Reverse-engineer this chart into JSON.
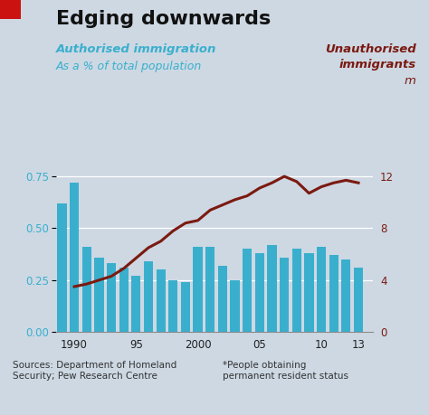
{
  "title": "Edging downwards",
  "left_label_line1": "Authorised immigration",
  "left_label_line2": "As a % of total population",
  "right_label_line1": "Unauthorised",
  "right_label_line2": "immigrants",
  "right_label_line3": "m",
  "background_color": "#cdd8e3",
  "bar_color": "#3aafcd",
  "line_color": "#7b1a10",
  "left_axis_color": "#3aafcd",
  "right_axis_color": "#7b1a10",
  "source_text": "Sources: Department of Homeland\nSecurity; Pew Research Centre",
  "note_text": "*People obtaining\npermanent resident status",
  "bar_years": [
    1989,
    1990,
    1991,
    1992,
    1993,
    1994,
    1995,
    1996,
    1997,
    1998,
    1999,
    2000,
    2001,
    2002,
    2003,
    2004,
    2005,
    2006,
    2007,
    2008,
    2009,
    2010,
    2011,
    2012,
    2013
  ],
  "bar_values": [
    0.62,
    0.72,
    0.41,
    0.36,
    0.33,
    0.31,
    0.27,
    0.34,
    0.3,
    0.25,
    0.24,
    0.41,
    0.41,
    0.32,
    0.25,
    0.4,
    0.38,
    0.42,
    0.36,
    0.4,
    0.38,
    0.41,
    0.37,
    0.35,
    0.31
  ],
  "line_years": [
    1990,
    1991,
    1992,
    1993,
    1994,
    1995,
    1996,
    1997,
    1998,
    1999,
    2000,
    2001,
    2002,
    2003,
    2004,
    2005,
    2006,
    2007,
    2008,
    2009,
    2010,
    2011,
    2012,
    2013
  ],
  "line_values": [
    3.5,
    3.7,
    4.0,
    4.3,
    4.9,
    5.7,
    6.5,
    7.0,
    7.8,
    8.4,
    8.6,
    9.4,
    9.8,
    10.2,
    10.5,
    11.1,
    11.5,
    12.0,
    11.6,
    10.7,
    11.2,
    11.5,
    11.7,
    11.5
  ],
  "ylim_left": [
    0,
    1.0
  ],
  "ylim_right": [
    0,
    16.0
  ],
  "left_yticks": [
    0,
    0.25,
    0.5,
    0.75
  ],
  "right_yticks": [
    0,
    4,
    8,
    12
  ],
  "xtick_positions": [
    1990,
    1995,
    2000,
    2005,
    2010,
    2013
  ],
  "xtick_labels": [
    "1990",
    "95",
    "2000",
    "05",
    "10",
    "13"
  ],
  "grid_color": "#ffffff",
  "title_fontsize": 16,
  "label_fontsize": 9.5,
  "tick_fontsize": 8.5,
  "source_fontsize": 7.5,
  "red_rect_color": "#cc1111"
}
